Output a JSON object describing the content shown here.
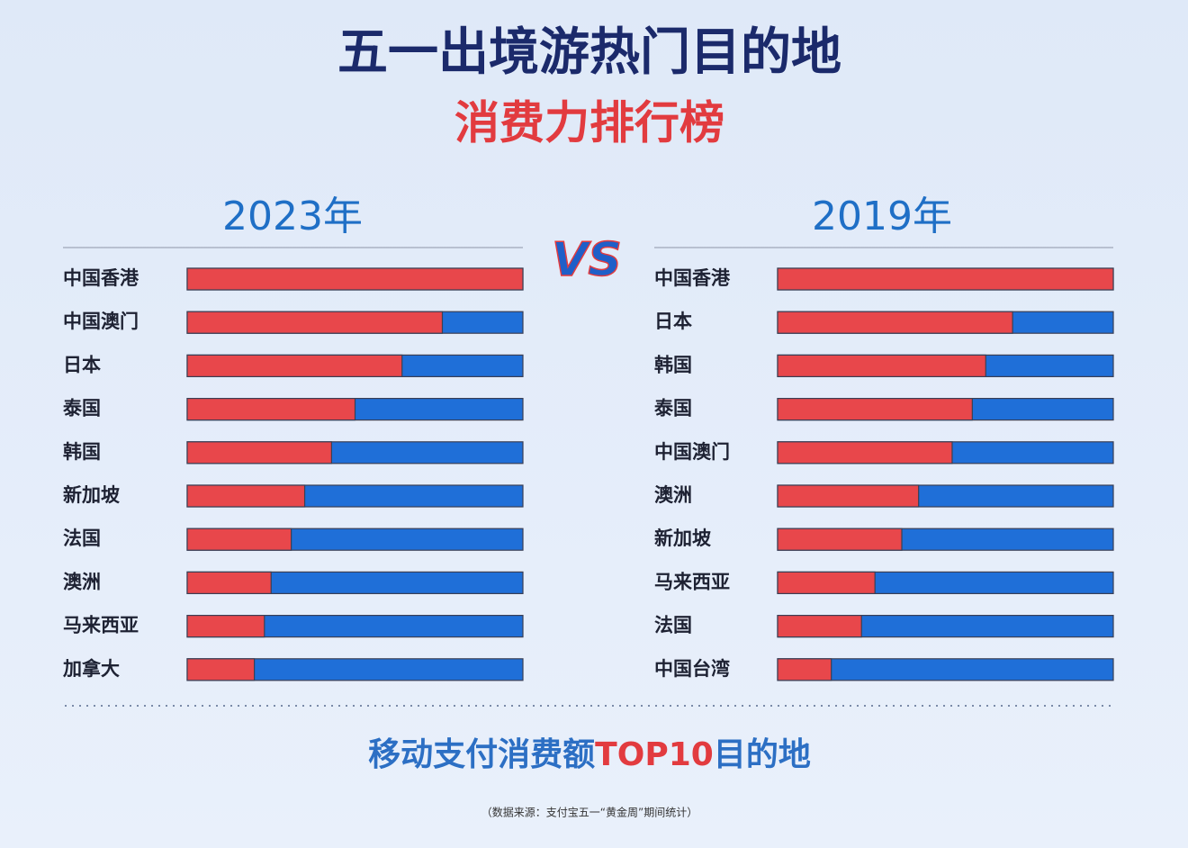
{
  "title": "五一出境游热门目的地",
  "subtitle": "消费力排行榜",
  "vs": "VS",
  "footer": [
    "移动支付消费额",
    "TOP10",
    "目的地"
  ],
  "source": "（数据来源：支付宝五一“黄金周”期间统计）",
  "chart_data": [
    {
      "type": "bar",
      "title": "2023年",
      "categories": [
        "中国香港",
        "中国澳门",
        "日本",
        "泰国",
        "韩国",
        "新加坡",
        "法国",
        "澳洲",
        "马来西亚",
        "加拿大"
      ],
      "values": [
        100,
        76,
        64,
        50,
        43,
        35,
        31,
        25,
        23,
        20
      ],
      "color": "#e8474b",
      "track_color": "#1f6fd8",
      "xlim": [
        0,
        100
      ]
    },
    {
      "type": "bar",
      "title": "2019年",
      "categories": [
        "中国香港",
        "日本",
        "韩国",
        "泰国",
        "中国澳门",
        "澳洲",
        "新加坡",
        "马来西亚",
        "法国",
        "中国台湾"
      ],
      "values": [
        100,
        70,
        62,
        58,
        52,
        42,
        37,
        29,
        25,
        16
      ],
      "color": "#e8474b",
      "track_color": "#1f6fd8",
      "xlim": [
        0,
        100
      ]
    }
  ]
}
